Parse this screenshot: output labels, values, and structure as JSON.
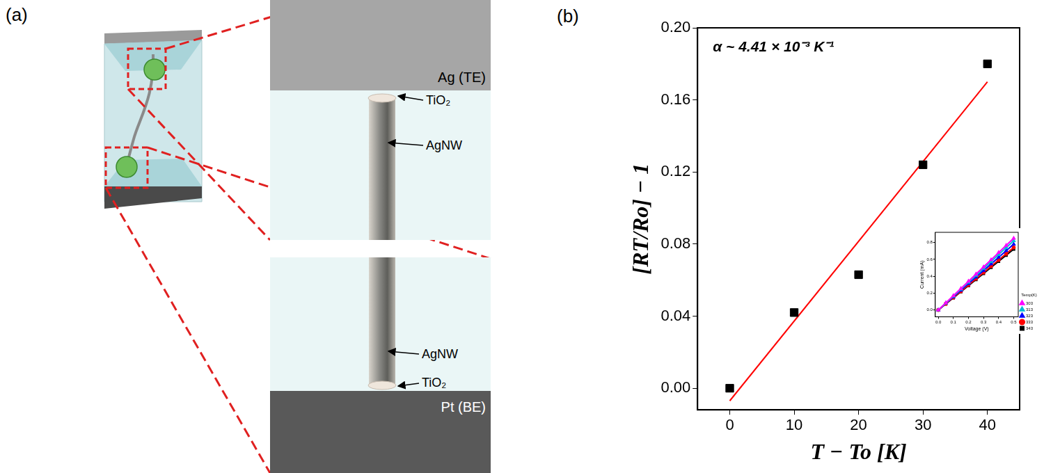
{
  "diagram": {
    "panel_label": "(a)",
    "top_electrode": "Ag (TE)",
    "bottom_electrode": "Pt (BE)",
    "top_zoom": {
      "shell": "TiO₂",
      "core": "AgNW"
    },
    "bottom_zoom": {
      "core": "AgNW",
      "shell": "TiO₂"
    }
  },
  "chart_data": [
    {
      "type": "scatter",
      "title": "(b)",
      "x_label": "T − To [K]",
      "y_label": "[RT/Ro] − 1",
      "annotations": [
        "α ~ 4.41 × 10⁻³ K⁻¹"
      ],
      "xlim": [
        -5,
        45
      ],
      "xticks": [
        0,
        10,
        20,
        30,
        40
      ],
      "ylim": [
        -0.012,
        0.2
      ],
      "yticks": [
        {
          "value": 0,
          "label": "0.00"
        },
        {
          "value": 0.04,
          "label": "0.04"
        },
        {
          "value": 0.08,
          "label": "0.08"
        },
        {
          "value": 0.12,
          "label": "0.12"
        },
        {
          "value": 0.16,
          "label": "0.16"
        },
        {
          "value": 0.2,
          "label": "0.20"
        }
      ],
      "grid": false,
      "series": [
        {
          "type": "scatter",
          "color": "#000000",
          "marker": "square",
          "x": [
            0,
            10,
            20,
            30,
            40
          ],
          "values": [
            0,
            0.042,
            0.063,
            0.124,
            0.18
          ]
        },
        {
          "type": "line",
          "color": "#ff0000",
          "marker": "none",
          "line_style": "solid",
          "x": [
            0,
            40
          ],
          "values": [
            -0.007,
            0.17
          ]
        }
      ]
    },
    {
      "type": "line",
      "x_label": "Voltage (V)",
      "y_label": "Current (mA)",
      "xlim": [
        -0.02,
        0.53
      ],
      "xticks": [
        {
          "value": 0,
          "label": "0.0"
        },
        {
          "value": 0.1,
          "label": "0.1"
        },
        {
          "value": 0.2,
          "label": "0.2"
        },
        {
          "value": 0.3,
          "label": "0.3"
        },
        {
          "value": 0.4,
          "label": "0.4"
        },
        {
          "value": 0.5,
          "label": "0.5"
        }
      ],
      "ylim": [
        -0.08,
        0.92
      ],
      "yticks": [
        {
          "value": 0,
          "label": "0.0"
        },
        {
          "value": 0.2,
          "label": "0.2"
        },
        {
          "value": 0.4,
          "label": "0.4"
        },
        {
          "value": 0.6,
          "label": "0.6"
        },
        {
          "value": 0.8,
          "label": "0.8"
        }
      ],
      "grid": false,
      "legend": "lower right",
      "legend_title": "Temp(K)",
      "series": [
        {
          "name": "303",
          "type": "line",
          "color": "#ff00ff",
          "marker": "triangle",
          "line_style": "solid",
          "x": [
            0,
            0.05,
            0.1,
            0.15,
            0.2,
            0.25,
            0.3,
            0.35,
            0.4,
            0.45,
            0.5
          ],
          "values": [
            0,
            0.085,
            0.17,
            0.255,
            0.34,
            0.425,
            0.51,
            0.595,
            0.68,
            0.765,
            0.85
          ]
        },
        {
          "name": "313",
          "type": "line",
          "color": "#00bcd4",
          "marker": "triangle",
          "line_style": "solid",
          "x": [
            0,
            0.05,
            0.1,
            0.15,
            0.2,
            0.25,
            0.3,
            0.35,
            0.4,
            0.45,
            0.5
          ],
          "values": [
            0,
            0.082,
            0.164,
            0.246,
            0.328,
            0.41,
            0.492,
            0.574,
            0.656,
            0.738,
            0.82
          ]
        },
        {
          "name": "323",
          "type": "line",
          "color": "#0000ff",
          "marker": "triangle",
          "line_style": "solid",
          "x": [
            0,
            0.05,
            0.1,
            0.15,
            0.2,
            0.25,
            0.3,
            0.35,
            0.4,
            0.45,
            0.5
          ],
          "values": [
            0,
            0.078,
            0.156,
            0.234,
            0.312,
            0.39,
            0.468,
            0.546,
            0.624,
            0.702,
            0.78
          ]
        },
        {
          "name": "333",
          "type": "line",
          "color": "#ff0000",
          "marker": "circle",
          "line_style": "solid",
          "x": [
            0,
            0.05,
            0.1,
            0.15,
            0.2,
            0.25,
            0.3,
            0.35,
            0.4,
            0.45,
            0.5
          ],
          "values": [
            0,
            0.074,
            0.148,
            0.222,
            0.296,
            0.37,
            0.444,
            0.518,
            0.592,
            0.666,
            0.74
          ]
        },
        {
          "name": "343",
          "type": "line",
          "color": "#000000",
          "marker": "square",
          "line_style": "solid",
          "x": [
            0,
            0.05,
            0.1,
            0.15,
            0.2,
            0.25,
            0.3,
            0.35,
            0.4,
            0.45,
            0.5
          ],
          "values": [
            0,
            0.072,
            0.144,
            0.216,
            0.288,
            0.36,
            0.432,
            0.504,
            0.576,
            0.648,
            0.72
          ]
        }
      ]
    }
  ]
}
